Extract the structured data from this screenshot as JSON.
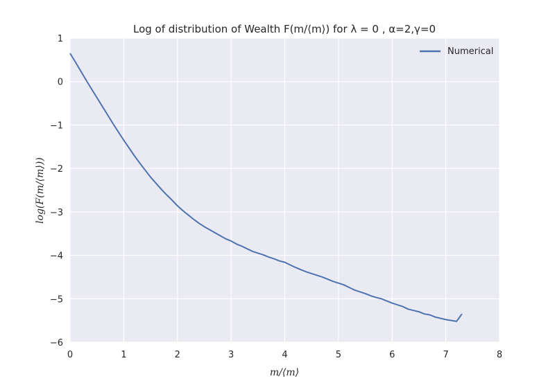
{
  "chart_data": {
    "type": "line",
    "title": "Log of distribution of Wealth F(m/⟨m⟩) for λ = 0 , α=2,γ=0",
    "xlabel": "m/⟨m⟩",
    "ylabel": "log(F(m/⟨m⟩))",
    "xlim": [
      0,
      8
    ],
    "ylim": [
      -6,
      1
    ],
    "xticks": [
      0,
      1,
      2,
      3,
      4,
      5,
      6,
      7,
      8
    ],
    "yticks": [
      1,
      0,
      -1,
      -2,
      -3,
      -4,
      -5,
      -6
    ],
    "xtick_labels": [
      "0",
      "1",
      "2",
      "3",
      "4",
      "5",
      "6",
      "7",
      "8"
    ],
    "ytick_labels": [
      "1",
      "0",
      "−1",
      "−2",
      "−3",
      "−4",
      "−5",
      "−6"
    ],
    "grid": true,
    "legend_position": "top-right",
    "series": [
      {
        "name": "Numerical",
        "color": "#4c72b0",
        "x": [
          0.0,
          0.1,
          0.2,
          0.3,
          0.4,
          0.5,
          0.6,
          0.7,
          0.8,
          0.9,
          1.0,
          1.1,
          1.2,
          1.3,
          1.4,
          1.5,
          1.6,
          1.7,
          1.8,
          1.9,
          2.0,
          2.1,
          2.2,
          2.3,
          2.4,
          2.5,
          2.6,
          2.7,
          2.8,
          2.9,
          3.0,
          3.1,
          3.2,
          3.3,
          3.4,
          3.5,
          3.6,
          3.7,
          3.8,
          3.9,
          4.0,
          4.1,
          4.2,
          4.3,
          4.4,
          4.5,
          4.6,
          4.7,
          4.8,
          4.9,
          5.0,
          5.1,
          5.2,
          5.3,
          5.4,
          5.5,
          5.6,
          5.7,
          5.8,
          5.9,
          6.0,
          6.1,
          6.2,
          6.3,
          6.4,
          6.5,
          6.6,
          6.7,
          6.8,
          6.9,
          7.0,
          7.1,
          7.2,
          7.3
        ],
        "y": [
          0.65,
          0.45,
          0.24,
          0.03,
          -0.17,
          -0.37,
          -0.57,
          -0.77,
          -0.97,
          -1.16,
          -1.35,
          -1.53,
          -1.71,
          -1.88,
          -2.04,
          -2.2,
          -2.34,
          -2.48,
          -2.61,
          -2.73,
          -2.86,
          -2.97,
          -3.07,
          -3.17,
          -3.26,
          -3.34,
          -3.41,
          -3.48,
          -3.55,
          -3.62,
          -3.67,
          -3.74,
          -3.79,
          -3.85,
          -3.91,
          -3.95,
          -3.99,
          -4.04,
          -4.08,
          -4.13,
          -4.16,
          -4.22,
          -4.28,
          -4.33,
          -4.38,
          -4.42,
          -4.46,
          -4.5,
          -4.55,
          -4.6,
          -4.64,
          -4.68,
          -4.74,
          -4.8,
          -4.84,
          -4.88,
          -4.93,
          -4.97,
          -5.0,
          -5.05,
          -5.1,
          -5.14,
          -5.18,
          -5.24,
          -5.27,
          -5.3,
          -5.35,
          -5.37,
          -5.42,
          -5.45,
          -5.48,
          -5.5,
          -5.52,
          -5.35
        ]
      }
    ]
  }
}
